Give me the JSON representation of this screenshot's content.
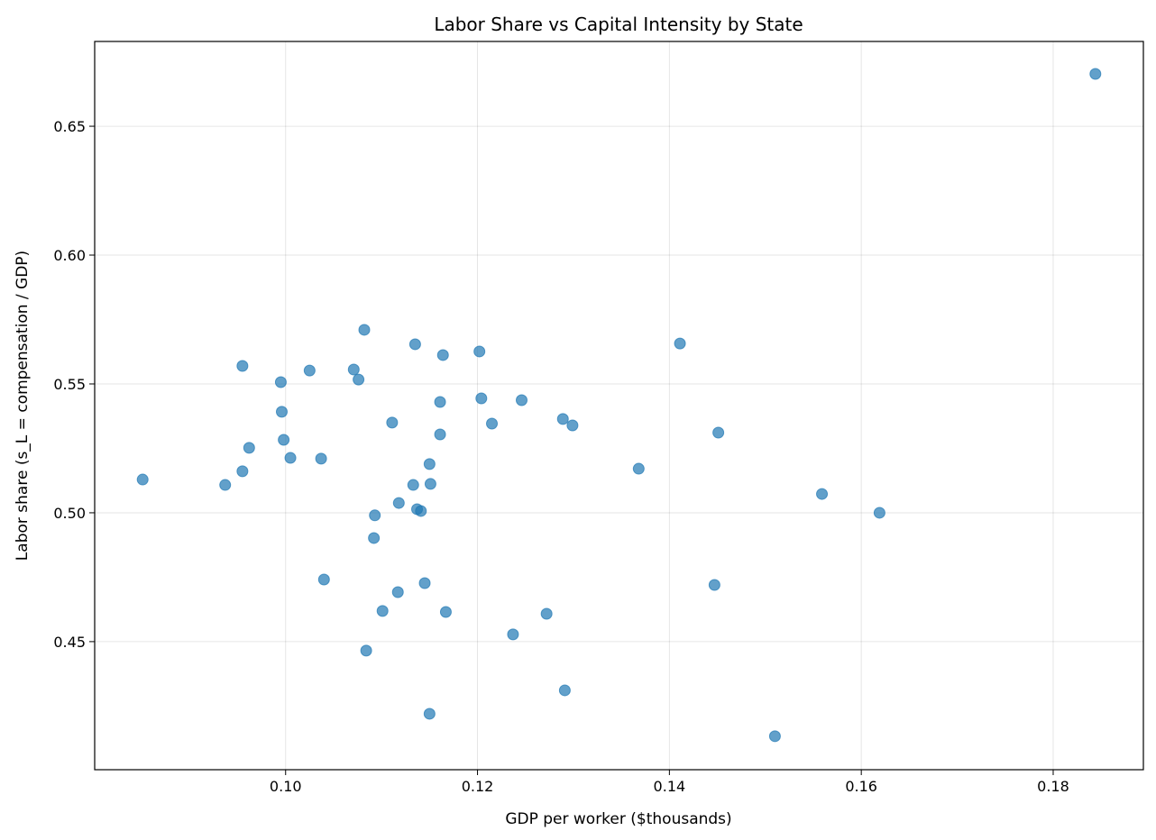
{
  "chart_data": {
    "type": "scatter",
    "title": "Labor Share vs Capital Intensity by State",
    "xlabel": "GDP per worker ($thousands)",
    "ylabel": "Labor share (s_L = compensation / GDP)",
    "xlim": [
      0.0801,
      0.1894
    ],
    "ylim": [
      0.4003,
      0.6829
    ],
    "xticks": [
      0.1,
      0.12,
      0.14,
      0.16,
      0.18
    ],
    "xtick_labels": [
      "0.10",
      "0.12",
      "0.14",
      "0.16",
      "0.18"
    ],
    "yticks": [
      0.45,
      0.5,
      0.55,
      0.6,
      0.65
    ],
    "ytick_labels": [
      "0.45",
      "0.50",
      "0.55",
      "0.60",
      "0.65"
    ],
    "grid": true,
    "marker_color": "#1f77b4",
    "marker_alpha": 0.7,
    "points": [
      [
        0.0851,
        0.5129
      ],
      [
        0.0937,
        0.5108
      ],
      [
        0.0955,
        0.5161
      ],
      [
        0.0955,
        0.557
      ],
      [
        0.0962,
        0.5252
      ],
      [
        0.0995,
        0.5507
      ],
      [
        0.0996,
        0.5392
      ],
      [
        0.0998,
        0.5283
      ],
      [
        0.1005,
        0.5213
      ],
      [
        0.1025,
        0.5552
      ],
      [
        0.1037,
        0.521
      ],
      [
        0.104,
        0.4741
      ],
      [
        0.1071,
        0.5556
      ],
      [
        0.1076,
        0.5517
      ],
      [
        0.1082,
        0.571
      ],
      [
        0.1084,
        0.4465
      ],
      [
        0.1092,
        0.4902
      ],
      [
        0.1093,
        0.499
      ],
      [
        0.1101,
        0.4619
      ],
      [
        0.1111,
        0.535
      ],
      [
        0.1117,
        0.4692
      ],
      [
        0.1118,
        0.5038
      ],
      [
        0.1133,
        0.5108
      ],
      [
        0.1135,
        0.5654
      ],
      [
        0.1137,
        0.5014
      ],
      [
        0.1141,
        0.5007
      ],
      [
        0.1145,
        0.4727
      ],
      [
        0.115,
        0.5189
      ],
      [
        0.115,
        0.422
      ],
      [
        0.1151,
        0.5112
      ],
      [
        0.1161,
        0.543
      ],
      [
        0.1161,
        0.5304
      ],
      [
        0.1164,
        0.5612
      ],
      [
        0.1167,
        0.4615
      ],
      [
        0.1202,
        0.5626
      ],
      [
        0.1204,
        0.5444
      ],
      [
        0.1215,
        0.5346
      ],
      [
        0.1237,
        0.4528
      ],
      [
        0.1246,
        0.5437
      ],
      [
        0.1272,
        0.4608
      ],
      [
        0.1289,
        0.5364
      ],
      [
        0.1291,
        0.4311
      ],
      [
        0.1299,
        0.5339
      ],
      [
        0.1368,
        0.5171
      ],
      [
        0.1411,
        0.5657
      ],
      [
        0.1447,
        0.472
      ],
      [
        0.1451,
        0.5311
      ],
      [
        0.151,
        0.4133
      ],
      [
        0.1559,
        0.5073
      ],
      [
        0.1619,
        0.5
      ],
      [
        0.1844,
        0.6703
      ]
    ]
  }
}
